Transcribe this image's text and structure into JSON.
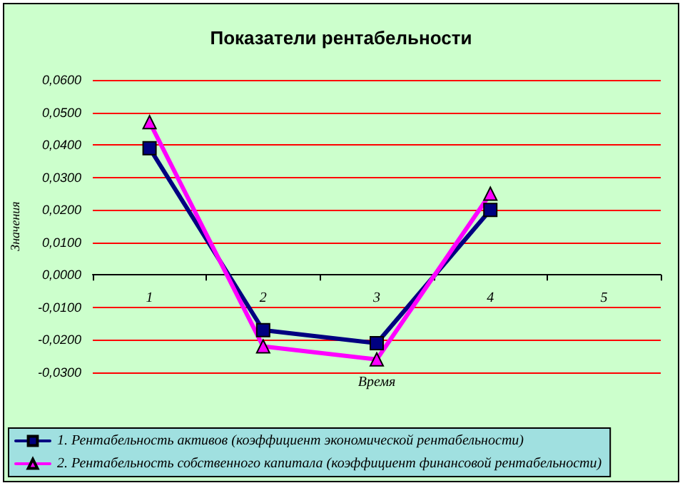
{
  "chart_data": {
    "type": "line",
    "title": "Показатели рентабельности",
    "xlabel": "Время",
    "ylabel": "Значения",
    "categories": [
      "1",
      "2",
      "3",
      "4",
      "5"
    ],
    "series": [
      {
        "name": "1. Рентабельность активов (коэффициент экономической рентабельности)",
        "color": "#000080",
        "marker": "square",
        "values": [
          0.039,
          -0.017,
          -0.021,
          0.02,
          null
        ]
      },
      {
        "name": "2. Рентабельность собственного капитала (коэффициент финансовой рентабельности)",
        "color": "#ff00ff",
        "marker": "triangle",
        "values": [
          0.047,
          -0.022,
          -0.026,
          0.025,
          null
        ]
      }
    ],
    "ylim": [
      -0.03,
      0.06
    ],
    "yticks": [
      {
        "value": -0.03,
        "label": "-0,0300"
      },
      {
        "value": -0.02,
        "label": "-0,0200"
      },
      {
        "value": -0.01,
        "label": "-0,0100"
      },
      {
        "value": 0,
        "label": "0,0000"
      },
      {
        "value": 0.01,
        "label": "0,0100"
      },
      {
        "value": 0.02,
        "label": "0,0200"
      },
      {
        "value": 0.03,
        "label": "0,0300"
      },
      {
        "value": 0.04,
        "label": "0,0400"
      },
      {
        "value": 0.05,
        "label": "0,0500"
      },
      {
        "value": 0.06,
        "label": "0,0600"
      }
    ],
    "grid": "y",
    "legend": "bottom",
    "line_style": "solid"
  }
}
